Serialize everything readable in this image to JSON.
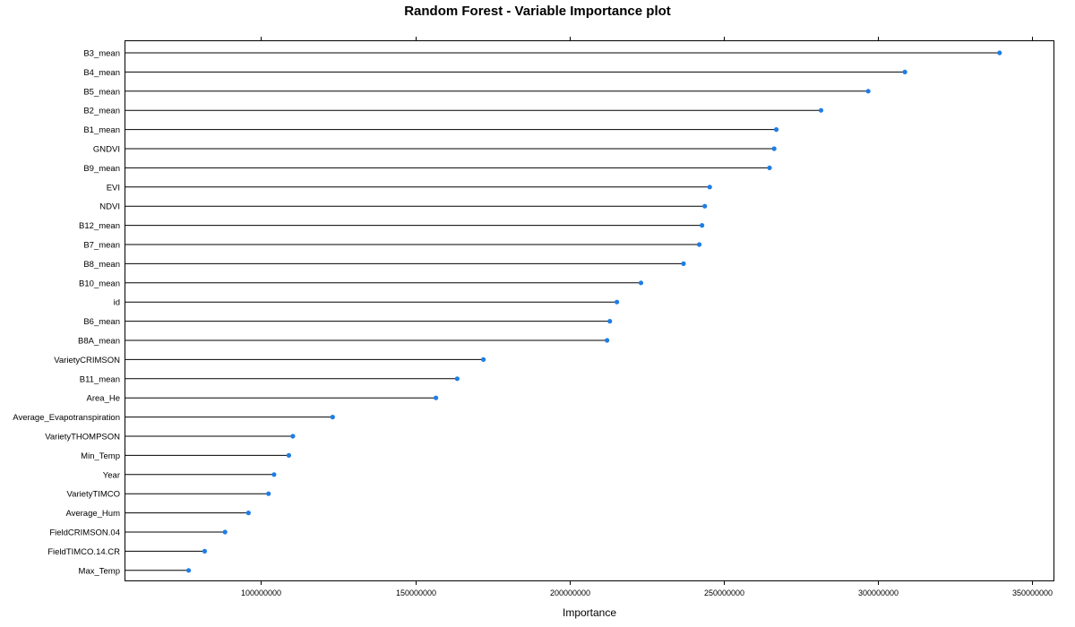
{
  "chart_data": {
    "type": "dot",
    "title": "Random Forest - Variable Importance plot",
    "xlabel": "Importance",
    "ylabel": "",
    "xlim": [
      56000000,
      357000000
    ],
    "x_ticks": [
      100000000,
      150000000,
      200000000,
      250000000,
      300000000,
      350000000
    ],
    "x_tick_labels": [
      "100000000",
      "150000000",
      "200000000",
      "250000000",
      "300000000",
      "350000000"
    ],
    "grid": false,
    "point_color": "#1f7de6",
    "line_color": "#000000",
    "categories": [
      "B3_mean",
      "B4_mean",
      "B5_mean",
      "B2_mean",
      "B1_mean",
      "GNDVI",
      "B9_mean",
      "EVI",
      "NDVI",
      "B12_mean",
      "B7_mean",
      "B8_mean",
      "B10_mean",
      "id",
      "B6_mean",
      "B8A_mean",
      "VarietyCRIMSON",
      "B11_mean",
      "Area_He",
      "Average_Evapotranspiration",
      "VarietyTHOMPSON",
      "Min_Temp",
      "Year",
      "VarietyTIMCO",
      "Average_Hum",
      "FieldCRIMSON.04",
      "FieldTIMCO.14.CR",
      "Max_Temp"
    ],
    "values": [
      339500000,
      308800000,
      296900000,
      281600000,
      267100000,
      266400000,
      264900000,
      245500000,
      243900000,
      243000000,
      242100000,
      237000000,
      223200000,
      215400000,
      213100000,
      212200000,
      172100000,
      163600000,
      156700000,
      123200000,
      110300000,
      109000000,
      104200000,
      102400000,
      95900000,
      88300000,
      81700000,
      76500000
    ]
  }
}
